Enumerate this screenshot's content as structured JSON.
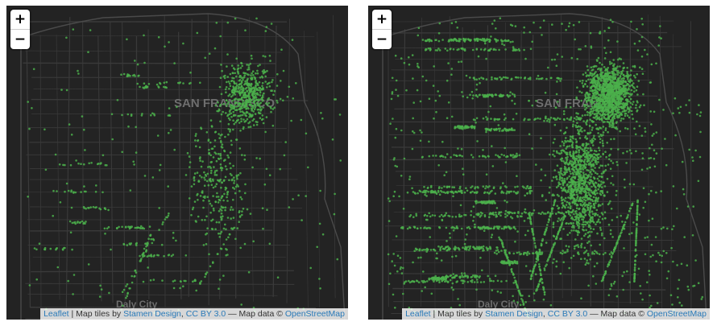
{
  "maps": [
    {
      "zoom_in_label": "+",
      "zoom_out_label": "−",
      "city_label": "SAN FRANCISCO",
      "town_label": "Daly City",
      "attribution": {
        "leaflet": "Leaflet",
        "sep1": " | Map tiles by ",
        "stamen": "Stamen Design",
        "sep2": ", ",
        "license": "CC BY 3.0",
        "sep3": " — Map data © ",
        "osm": "OpenStreetMap"
      },
      "point_color": "#4bb04b",
      "density": "lower"
    },
    {
      "zoom_in_label": "+",
      "zoom_out_label": "−",
      "city_label": "SAN FRAN",
      "town_label": "Daly City",
      "attribution": {
        "leaflet": "Leaflet",
        "sep1": " | Map tiles by ",
        "stamen": "Stamen Design",
        "sep2": ", ",
        "license": "CC BY 3.0",
        "sep3": " — Map data © ",
        "osm": "OpenStreetMap"
      },
      "point_color": "#4bb04b",
      "density": "higher"
    }
  ],
  "colors": {
    "background": "#232323",
    "roads": "#3a3a3a",
    "water": "#1c1c1c",
    "label": "#6e6e6e"
  }
}
